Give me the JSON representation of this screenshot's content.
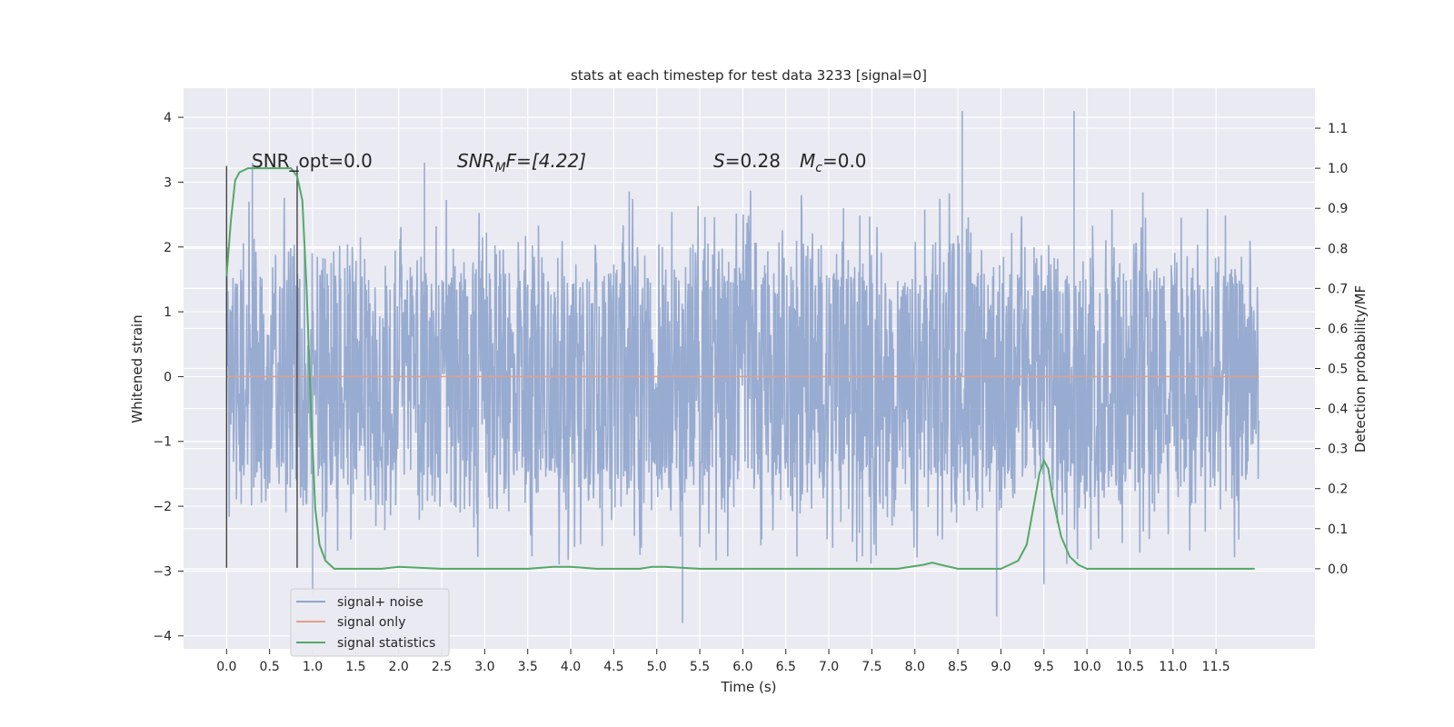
{
  "chart_data": {
    "type": "line",
    "title": "stats at each timestep for test data 3233 [signal=0]",
    "xlabel": "Time (s)",
    "ylabel": "Whitened strain",
    "y2label": "Detection probability/MF",
    "xlim": [
      -0.5,
      12.65
    ],
    "ylim": [
      -4.2,
      4.45
    ],
    "y2lim": [
      -0.2,
      1.2
    ],
    "x_ticks": [
      "0.0",
      "0.5",
      "1.0",
      "1.5",
      "2.0",
      "2.5",
      "3.0",
      "3.5",
      "4.0",
      "4.5",
      "5.0",
      "5.5",
      "6.0",
      "6.5",
      "7.0",
      "7.5",
      "8.0",
      "8.5",
      "9.0",
      "9.5",
      "10.0",
      "10.5",
      "11.0",
      "11.5"
    ],
    "y_ticks": [
      "4",
      "3",
      "2",
      "1",
      "0",
      "−1",
      "−2",
      "−3",
      "−4"
    ],
    "y2_ticks": [
      "1.1",
      "1.0",
      "0.9",
      "0.8",
      "0.7",
      "0.6",
      "0.5",
      "0.4",
      "0.3",
      "0.2",
      "0.1",
      "0.0"
    ],
    "grid": true,
    "legend_position": "bottom-left",
    "annotations": {
      "snr_opt": "SNR_opt=0.0",
      "snr_mf_label": "SNR",
      "snr_mf_sub": "M",
      "snr_mf_rest": "F=[4.22]",
      "s_label": "S",
      "s_rest": "=0.28",
      "mc_label": "M",
      "mc_sub": "c",
      "mc_rest": "=0.0"
    },
    "vertical_markers": [
      0.0,
      0.82
    ],
    "series": [
      {
        "name": "signal+ noise",
        "axis": "left",
        "color": "#8fa4cc",
        "x_range": [
          0.0,
          12.0
        ],
        "typical_band": [
          -1.6,
          1.6
        ],
        "peaks": [
          {
            "x": 0.3,
            "y": 3.3
          },
          {
            "x": 2.3,
            "y": 3.3
          },
          {
            "x": 8.55,
            "y": 4.1
          },
          {
            "x": 9.85,
            "y": 4.1
          },
          {
            "x": 5.3,
            "y": -3.8
          },
          {
            "x": 8.95,
            "y": -3.7
          },
          {
            "x": 1.0,
            "y": -3.4
          },
          {
            "x": 9.5,
            "y": -3.2
          }
        ]
      },
      {
        "name": "signal only",
        "axis": "left",
        "color": "#e0a08a",
        "x": [
          0.0,
          12.0
        ],
        "y": [
          0.0,
          0.0
        ]
      },
      {
        "name": "signal statistics",
        "axis": "right",
        "color": "#55a868",
        "x": [
          0.0,
          0.05,
          0.1,
          0.15,
          0.25,
          0.4,
          0.6,
          0.75,
          0.82,
          0.88,
          0.93,
          0.98,
          1.03,
          1.08,
          1.15,
          1.25,
          1.5,
          1.8,
          2.0,
          2.5,
          3.0,
          3.5,
          3.8,
          4.0,
          4.3,
          4.6,
          4.8,
          4.95,
          5.1,
          5.5,
          6.0,
          7.0,
          7.8,
          8.1,
          8.2,
          8.3,
          8.5,
          8.8,
          9.0,
          9.1,
          9.2,
          9.3,
          9.4,
          9.45,
          9.5,
          9.55,
          9.6,
          9.7,
          9.8,
          9.9,
          10.0,
          10.2,
          10.5,
          11.0,
          11.3,
          11.5,
          11.8,
          11.95
        ],
        "y": [
          0.73,
          0.87,
          0.97,
          0.99,
          1.0,
          1.0,
          1.0,
          1.0,
          0.98,
          0.92,
          0.7,
          0.4,
          0.15,
          0.06,
          0.02,
          0.0,
          0.0,
          0.0,
          0.005,
          0.0,
          0.0,
          0.0,
          0.005,
          0.005,
          0.0,
          0.0,
          0.0,
          0.005,
          0.005,
          0.0,
          0.0,
          0.0,
          0.0,
          0.01,
          0.015,
          0.01,
          0.0,
          0.0,
          0.0,
          0.01,
          0.02,
          0.06,
          0.18,
          0.24,
          0.27,
          0.25,
          0.18,
          0.08,
          0.03,
          0.01,
          0.0,
          0.0,
          0.0,
          0.0,
          0.0,
          0.0,
          0.0,
          0.0
        ]
      }
    ]
  }
}
